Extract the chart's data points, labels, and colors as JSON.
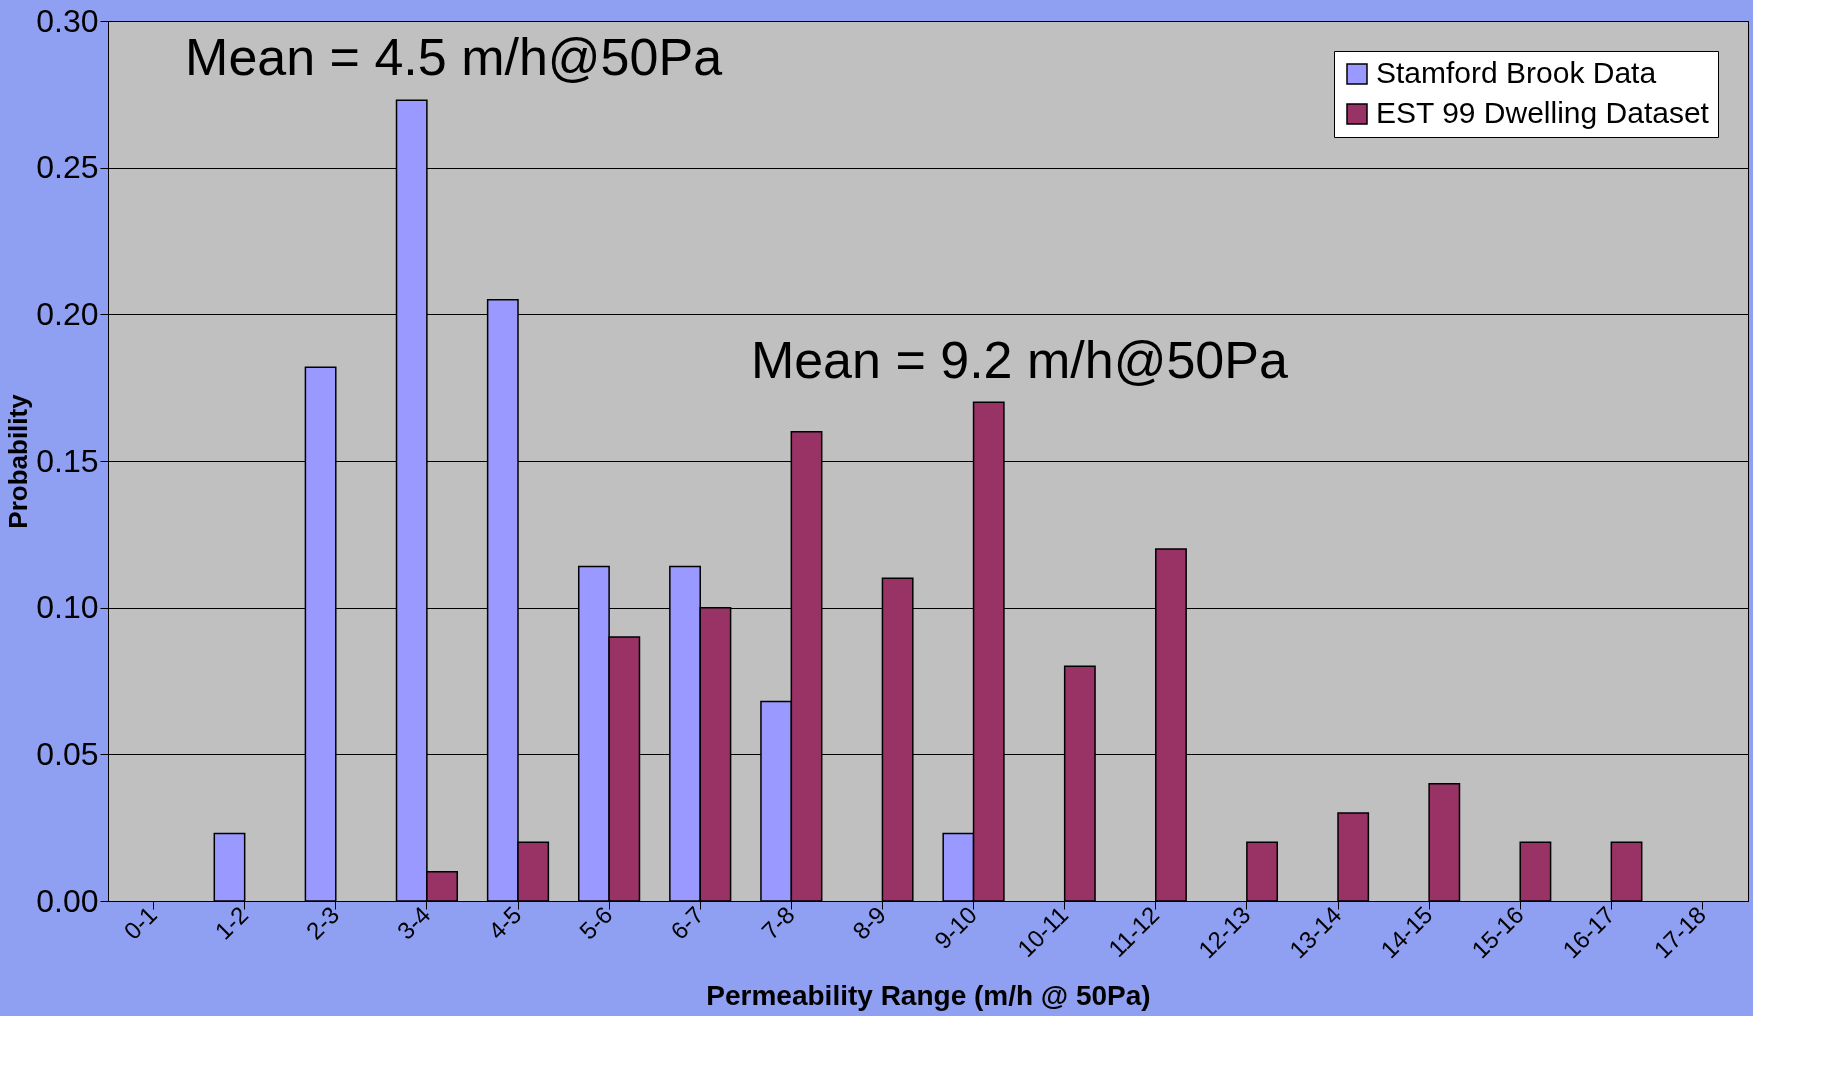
{
  "chart_data": {
    "type": "bar",
    "xlabel": "Permeability Range (m/h @ 50Pa)",
    "ylabel": "Probability",
    "categories": [
      "0-1",
      "1-2",
      "2-3",
      "3-4",
      "4-5",
      "5-6",
      "6-7",
      "7-8",
      "8-9",
      "9-10",
      "10-11",
      "11-12",
      "12-13",
      "13-14",
      "14-15",
      "15-16",
      "16-17",
      "17-18"
    ],
    "series": [
      {
        "name": "Stamford Brook Data",
        "color": "#9999ff",
        "values": [
          null,
          0.023,
          0.182,
          0.273,
          0.205,
          0.114,
          0.114,
          0.068,
          null,
          0.023,
          null,
          null,
          null,
          null,
          null,
          null,
          null,
          null
        ]
      },
      {
        "name": "EST 99 Dwelling Dataset",
        "color": "#993366",
        "values": [
          null,
          null,
          null,
          0.01,
          0.02,
          0.09,
          0.1,
          0.16,
          0.11,
          0.17,
          0.08,
          0.12,
          0.02,
          0.03,
          0.04,
          0.02,
          0.02,
          null
        ]
      }
    ],
    "ylim": [
      0,
      0.3
    ],
    "yticks": [
      {
        "value": 0,
        "label": "0.00"
      },
      {
        "value": 0.05,
        "label": "0.05"
      },
      {
        "value": 0.1,
        "label": "0.10"
      },
      {
        "value": 0.15,
        "label": "0.15"
      },
      {
        "value": 0.2,
        "label": "0.20"
      },
      {
        "value": 0.25,
        "label": "0.25"
      },
      {
        "value": 0.3,
        "label": "0.30"
      }
    ],
    "grid": "y",
    "legend": "top right",
    "annotations": [
      "Mean = 4.5 m/h@50Pa",
      "Mean = 9.2 m/h@50Pa"
    ]
  }
}
